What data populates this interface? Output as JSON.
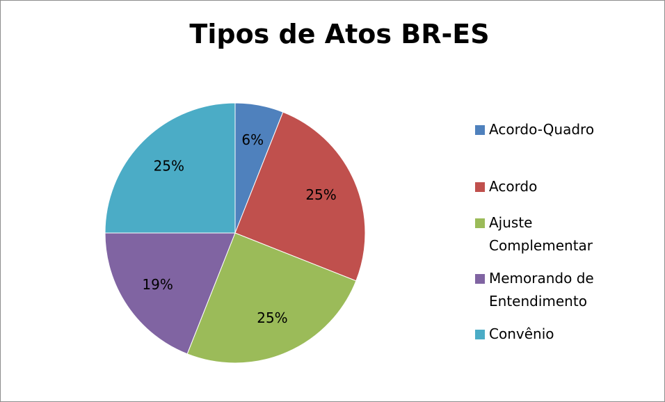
{
  "chart_data": {
    "type": "pie",
    "title": "Tipos de Atos BR-ES",
    "categories": [
      "Acordo-Quadro",
      "Acordo",
      "Ajuste Complementar",
      "Memorando de Entendimento",
      "Convênio"
    ],
    "values": [
      6,
      25,
      25,
      19,
      25
    ],
    "value_labels": [
      "6%",
      "25%",
      "25%",
      "19%",
      "25%"
    ],
    "colors": [
      "#4f81bd",
      "#c0504d",
      "#9bbb59",
      "#8064a2",
      "#4bacc6"
    ],
    "legend": "right"
  }
}
